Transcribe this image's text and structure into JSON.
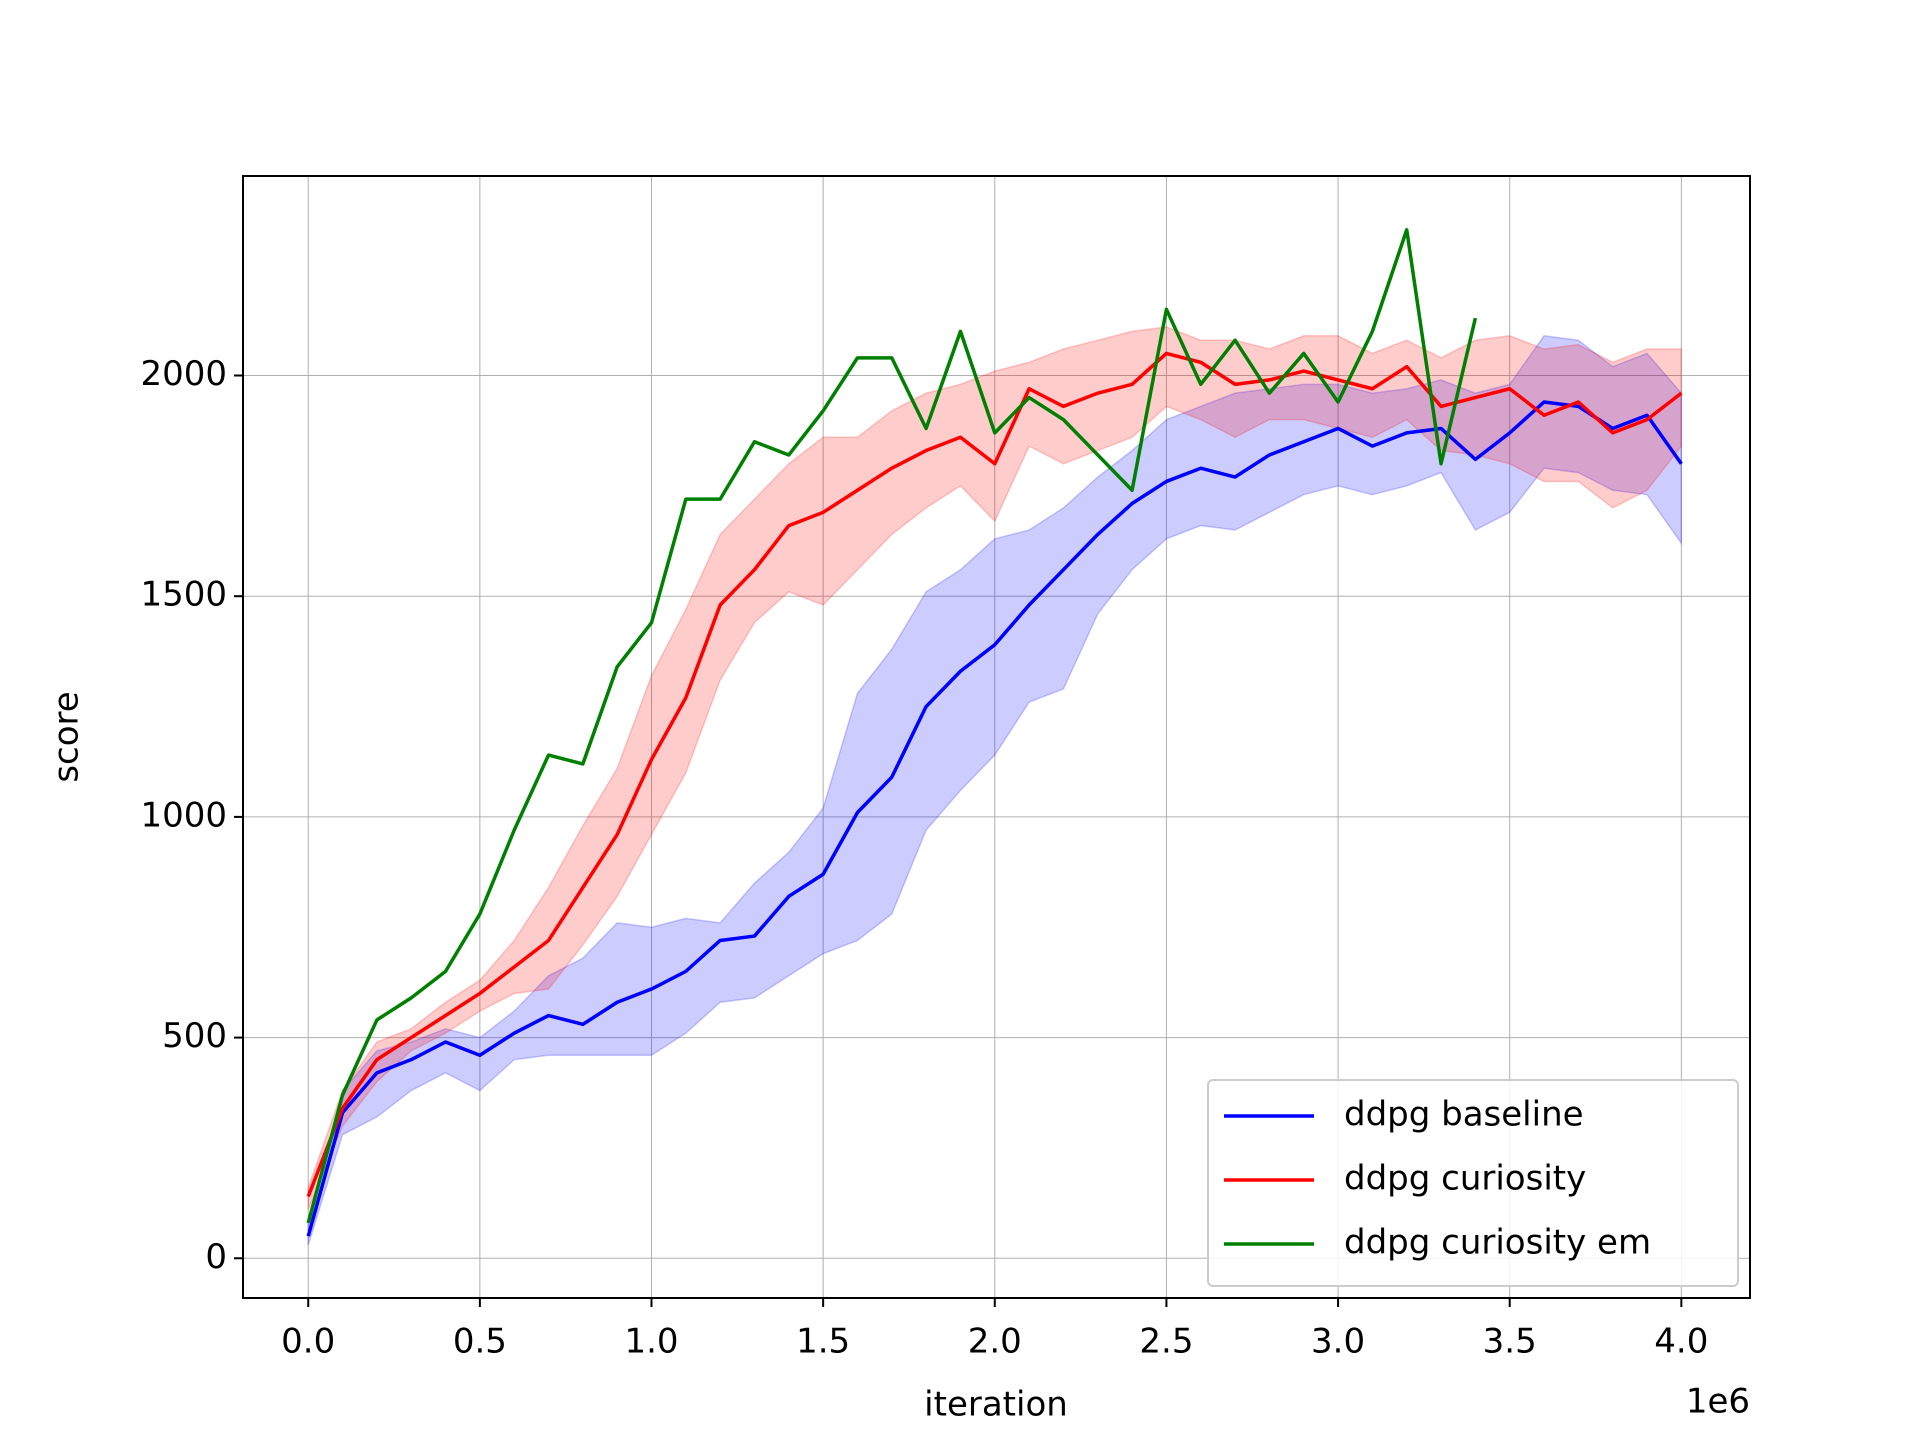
{
  "chart_data": {
    "type": "line",
    "xlabel": "iteration",
    "ylabel": "score",
    "x_offset_label": "1e6",
    "x": [
      0,
      0.1,
      0.2,
      0.3,
      0.4,
      0.5,
      0.6,
      0.7,
      0.8,
      0.9,
      1.0,
      1.1,
      1.2,
      1.3,
      1.4,
      1.5,
      1.6,
      1.7,
      1.8,
      1.9,
      2.0,
      2.1,
      2.2,
      2.3,
      2.4,
      2.5,
      2.6,
      2.7,
      2.8,
      2.9,
      3.0,
      3.1,
      3.2,
      3.3,
      3.4,
      3.5,
      3.6,
      3.7,
      3.8,
      3.9,
      4.0
    ],
    "series": [
      {
        "name": "ddpg baseline",
        "color": "#0000ff",
        "values": [
          50,
          330,
          420,
          450,
          490,
          460,
          510,
          550,
          530,
          580,
          610,
          650,
          720,
          730,
          820,
          870,
          1010,
          1090,
          1250,
          1330,
          1390,
          1480,
          1560,
          1640,
          1710,
          1760,
          1790,
          1770,
          1820,
          1850,
          1880,
          1840,
          1870,
          1880,
          1810,
          1870,
          1940,
          1930,
          1880,
          1910,
          1800
        ],
        "upper": [
          80,
          380,
          470,
          490,
          520,
          500,
          560,
          640,
          680,
          760,
          750,
          770,
          760,
          850,
          920,
          1020,
          1280,
          1380,
          1510,
          1560,
          1630,
          1650,
          1700,
          1770,
          1830,
          1900,
          1930,
          1960,
          1970,
          1980,
          1980,
          1960,
          1970,
          1990,
          1960,
          1980,
          2090,
          2080,
          2020,
          2050,
          1960
        ],
        "lower": [
          30,
          280,
          320,
          380,
          420,
          380,
          450,
          460,
          460,
          460,
          460,
          510,
          580,
          590,
          640,
          690,
          720,
          780,
          970,
          1060,
          1140,
          1260,
          1290,
          1460,
          1560,
          1630,
          1660,
          1650,
          1690,
          1730,
          1750,
          1730,
          1750,
          1780,
          1650,
          1690,
          1790,
          1780,
          1740,
          1730,
          1620
        ]
      },
      {
        "name": "ddpg curiosity",
        "color": "#ff0000",
        "values": [
          140,
          340,
          450,
          500,
          550,
          600,
          660,
          720,
          840,
          960,
          1130,
          1270,
          1480,
          1560,
          1660,
          1690,
          1740,
          1790,
          1830,
          1860,
          1800,
          1970,
          1930,
          1960,
          1980,
          2050,
          2030,
          1980,
          1990,
          2010,
          1990,
          1970,
          2020,
          1930,
          1950,
          1970,
          1910,
          1940,
          1870,
          1900,
          1960
        ],
        "upper": [
          160,
          380,
          490,
          520,
          580,
          630,
          720,
          840,
          980,
          1110,
          1320,
          1470,
          1640,
          1720,
          1800,
          1860,
          1860,
          1920,
          1960,
          1980,
          2010,
          2030,
          2060,
          2080,
          2100,
          2110,
          2080,
          2080,
          2060,
          2090,
          2090,
          2050,
          2080,
          2040,
          2080,
          2090,
          2060,
          2070,
          2030,
          2060,
          2060
        ],
        "lower": [
          110,
          300,
          400,
          470,
          510,
          560,
          600,
          610,
          710,
          820,
          960,
          1100,
          1310,
          1440,
          1510,
          1480,
          1560,
          1640,
          1700,
          1750,
          1670,
          1840,
          1800,
          1830,
          1860,
          1930,
          1900,
          1860,
          1900,
          1900,
          1880,
          1860,
          1900,
          1830,
          1820,
          1800,
          1760,
          1760,
          1700,
          1740,
          1840
        ]
      },
      {
        "name": "ddpg curiosity em",
        "color": "#008000",
        "values": [
          80,
          370,
          540,
          590,
          650,
          780,
          970,
          1140,
          1120,
          1340,
          1440,
          1720,
          1720,
          1850,
          1820,
          1920,
          2040,
          2040,
          1880,
          2100,
          1870,
          1950,
          1900,
          1820,
          1740,
          2150,
          1980,
          2080,
          1960,
          2050,
          1940,
          2100,
          2330,
          1800,
          2130,
          null,
          null,
          null,
          null,
          null,
          null
        ]
      }
    ],
    "xlim": [
      -0.19,
      4.2
    ],
    "ylim": [
      -90,
      2452
    ],
    "xticks": [
      {
        "value": 0,
        "label": "0.0"
      },
      0.5,
      {
        "value": 1,
        "label": "1.0"
      },
      1.5,
      {
        "value": 2,
        "label": "2.0"
      },
      2.5,
      {
        "value": 3,
        "label": "3.0"
      },
      3.5,
      {
        "value": 4,
        "label": "4.0"
      }
    ],
    "yticks": [
      0,
      500,
      1000,
      1500,
      2000
    ],
    "grid": true,
    "legend": "lower right"
  }
}
